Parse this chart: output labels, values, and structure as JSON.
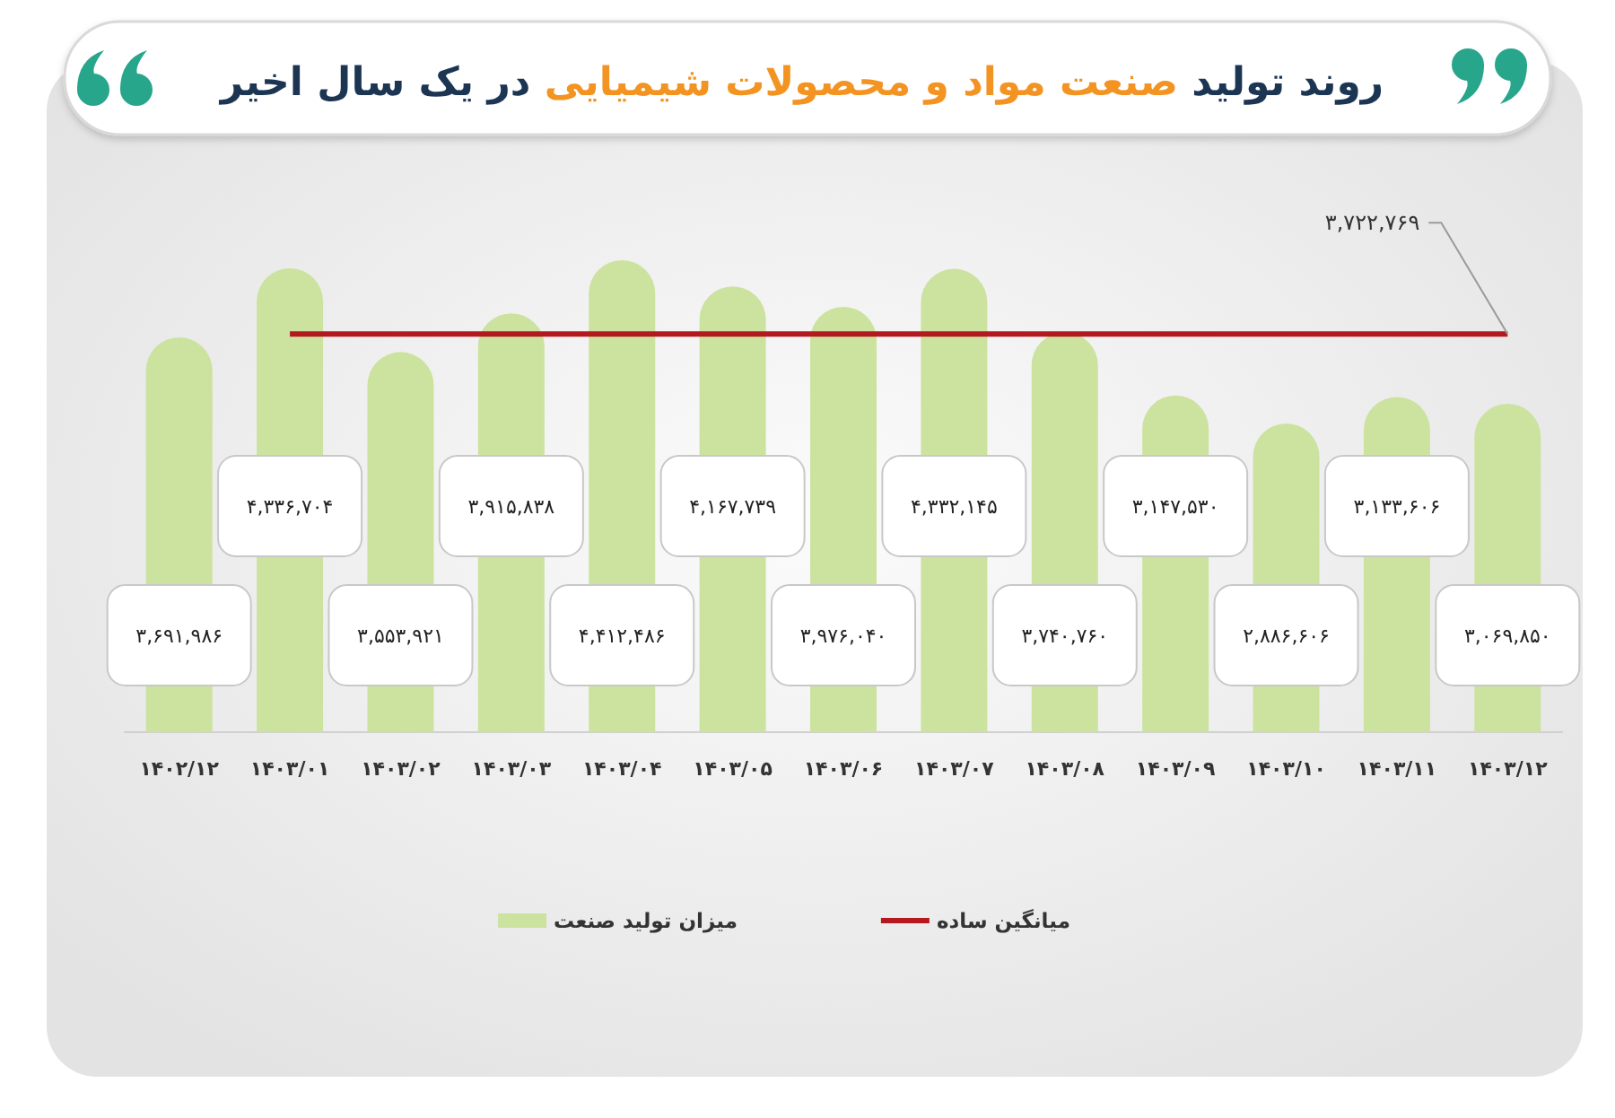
{
  "chart_data": {
    "type": "bar",
    "title": "روند تولید صنعت مواد و محصولات شیمیایی در یک سال اخیر",
    "categories": [
      "۱۴۰۲/۱۲",
      "۱۴۰۳/۰۱",
      "۱۴۰۳/۰۲",
      "۱۴۰۳/۰۳",
      "۱۴۰۳/۰۴",
      "۱۴۰۳/۰۵",
      "۱۴۰۳/۰۶",
      "۱۴۰۳/۰۷",
      "۱۴۰۳/۰۸",
      "۱۴۰۳/۰۹",
      "۱۴۰۳/۱۰",
      "۱۴۰۳/۱۱",
      "۱۴۰۳/۱۲"
    ],
    "series": [
      {
        "name": "میزان تولید صنعت",
        "color": "#cbe39f",
        "values": [
          3691986,
          4336704,
          3553921,
          3915838,
          4412486,
          4167739,
          3976040,
          4332145,
          3740760,
          3147530,
          2886606,
          3133606,
          3069850
        ],
        "value_labels": [
          "۳,۶۹۱,۹۸۶",
          "۴,۳۳۶,۷۰۴",
          "۳,۵۵۳,۹۲۱",
          "۳,۹۱۵,۸۳۸",
          "۴,۴۱۲,۴۸۶",
          "۴,۱۶۷,۷۳۹",
          "۳,۹۷۶,۰۴۰",
          "۴,۳۳۲,۱۴۵",
          "۳,۷۴۰,۷۶۰",
          "۳,۱۴۷,۵۳۰",
          "۲,۸۸۶,۶۰۶",
          "۳,۱۳۳,۶۰۶",
          "۳,۰۶۹,۸۵۰"
        ]
      },
      {
        "type": "line",
        "name": "میانگین ساده",
        "color": "#b3191f",
        "values": [
          null,
          3722769,
          3722769,
          3722769,
          3722769,
          3722769,
          3722769,
          3722769,
          3722769,
          3722769,
          3722769,
          3722769,
          3722769
        ]
      }
    ],
    "annotations": [
      {
        "text": "۳,۷۲۲,۷۶۹",
        "x": "۱۴۰۳/۱۲",
        "y": 3722769
      }
    ],
    "tick_labels": "x",
    "legend": "bottom"
  }
}
